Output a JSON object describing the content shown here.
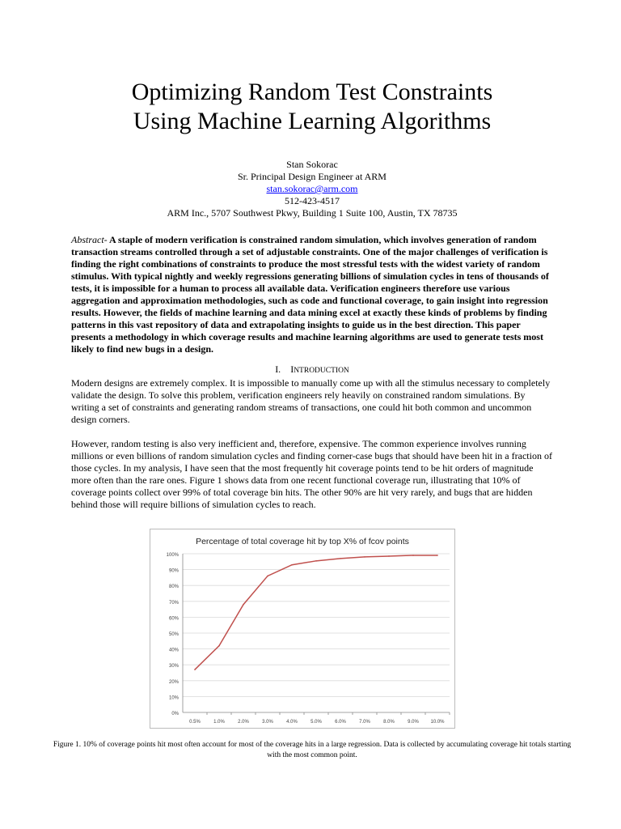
{
  "title_lines": [
    "Optimizing Random Test Constraints",
    "Using Machine Learning Algorithms"
  ],
  "author": {
    "name": "Stan Sokorac",
    "role": "Sr. Principal Design Engineer at ARM",
    "email": "stan.sokorac@arm.com",
    "phone": "512-423-4517",
    "address": "ARM Inc., 5707 Southwest Pkwy, Building 1 Suite 100, Austin, TX 78735"
  },
  "abstract": {
    "label": "Abstract-",
    "text": "A staple of modern verification is constrained random simulation, which involves generation of random transaction streams controlled through a set of adjustable constraints. One of the major challenges of verification is finding the right combinations of constraints to produce the most stressful tests with the widest variety of random stimulus. With typical nightly and weekly regressions generating billions of simulation cycles in tens of thousands of tests, it is impossible for a human to process all available data. Verification engineers therefore use various aggregation and approximation methodologies, such as code and functional coverage, to gain insight into regression results. However, the fields of machine learning and data mining excel at exactly these kinds of problems by finding patterns in this vast repository of data and extrapolating insights to guide us in the best direction. This paper presents a methodology in which coverage results and machine learning algorithms are used to generate tests most likely to find new bugs in a design."
  },
  "section": {
    "number": "I.",
    "title_first": "I",
    "title_rest": "NTRODUCTION"
  },
  "paragraphs": [
    "Modern designs are extremely complex. It is impossible to manually come up with all the stimulus necessary to completely validate the design. To solve this problem, verification engineers rely heavily on constrained random simulations. By writing a set of constraints and generating random streams of transactions, one could hit both common and uncommon design corners.",
    "However, random testing is also very inefficient and, therefore, expensive. The common experience involves running millions or even billions of random simulation cycles and finding corner-case bugs that should have been hit in a fraction of those cycles. In my analysis, I have seen that the most frequently hit coverage points tend to be hit orders of magnitude more often than the rare ones. Figure 1 shows data from one recent functional coverage run, illustrating that 10% of coverage points collect over 99% of total coverage bin hits. The other 90% are hit very rarely, and bugs that are hidden behind those will require billions of simulation cycles to reach."
  ],
  "caption": "Figure 1. 10% of coverage points hit most often account for most of the coverage hits in a large regression. Data is collected by accumulating coverage hit totals starting with the most common point.",
  "chart_data": {
    "type": "line",
    "title": "Percentage of total coverage hit by top X% of fcov points",
    "categories": [
      "0.5%",
      "1.0%",
      "2.0%",
      "3.0%",
      "4.0%",
      "5.0%",
      "6.0%",
      "7.0%",
      "8.0%",
      "9.0%",
      "10.0%"
    ],
    "values": [
      27,
      42,
      68,
      86,
      93,
      95.5,
      97,
      98,
      98.5,
      99,
      99
    ],
    "yticks": [
      "0%",
      "10%",
      "20%",
      "30%",
      "40%",
      "50%",
      "60%",
      "70%",
      "80%",
      "90%",
      "100%"
    ],
    "ylim": [
      0,
      100
    ],
    "grid": true,
    "line_color": "#c0504d"
  }
}
